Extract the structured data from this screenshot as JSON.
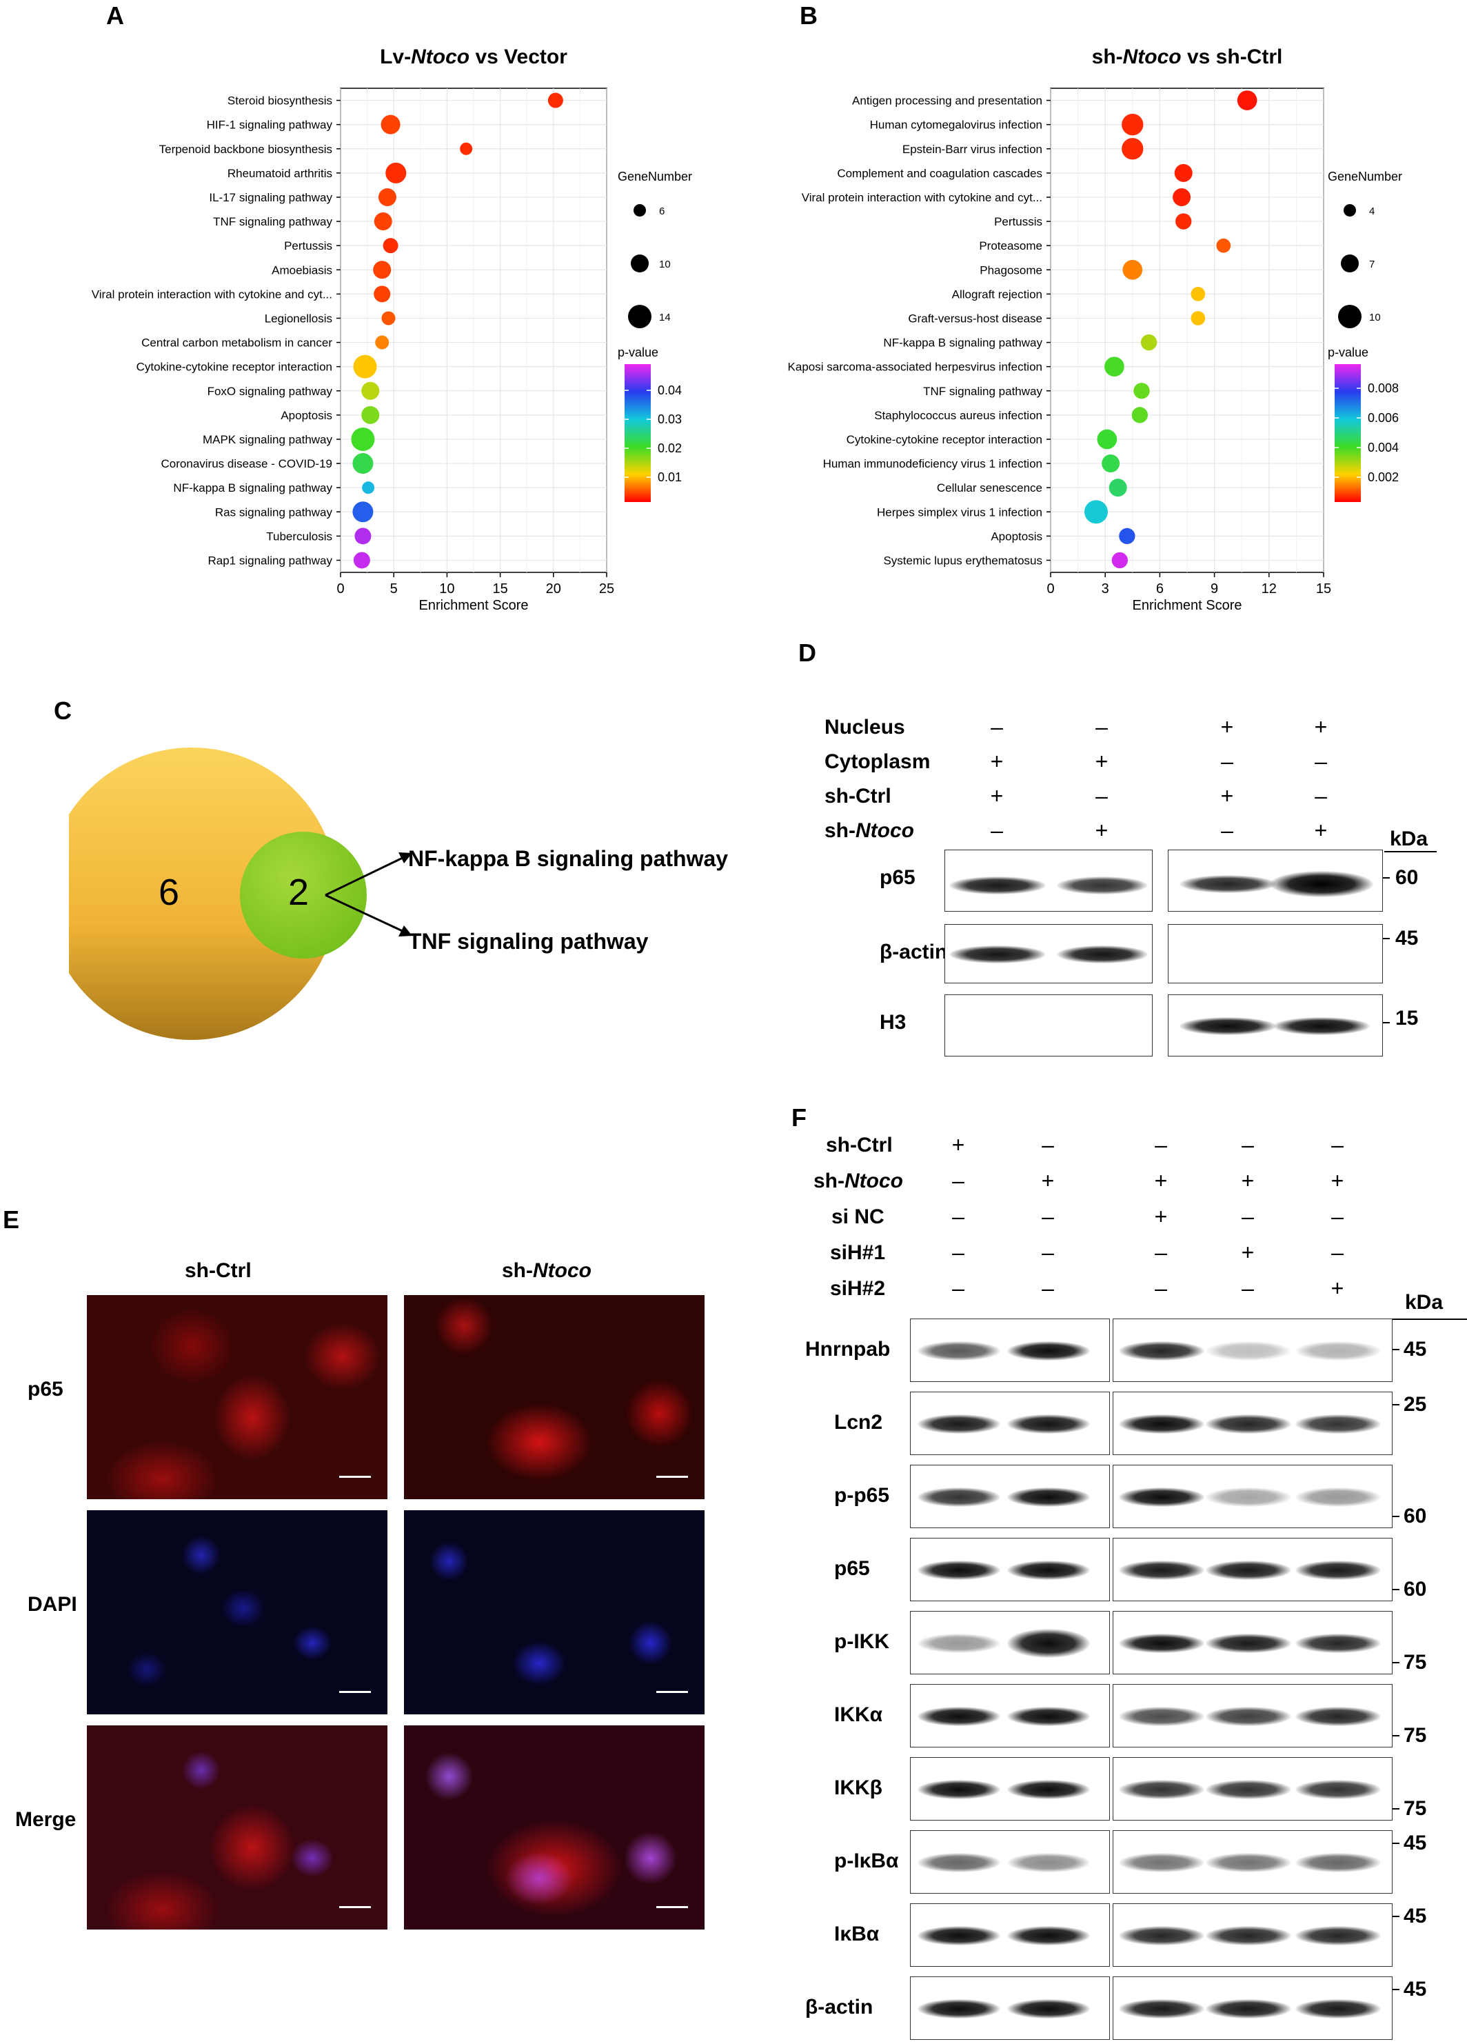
{
  "panels": {
    "A": "A",
    "B": "B",
    "C": "C",
    "D": "D",
    "E": "E",
    "F": "F"
  },
  "chart_data": [
    {
      "type": "scatter",
      "panel": "A",
      "title": "Lv-Ntoco vs Vector",
      "title_parts": [
        "Lv-",
        "Ntoco",
        " vs Vector"
      ],
      "xlabel": "Enrichment Score",
      "xlim": [
        0,
        25
      ],
      "xticks": [
        0,
        5,
        10,
        15,
        20,
        25
      ],
      "size_legend_title": "GeneNumber",
      "size_legend": [
        6,
        10,
        14
      ],
      "color_legend_title": "p-value",
      "color_ticks": [
        "0.04",
        "0.03",
        "0.02",
        "0.01"
      ],
      "grid": true,
      "categories": [
        "Steroid biosynthesis",
        "HIF-1 signaling pathway",
        "Terpenoid backbone biosynthesis",
        "Rheumatoid arthritis",
        "IL-17 signaling pathway",
        "TNF signaling pathway",
        "Pertussis",
        "Amoebiasis",
        "Viral protein interaction with cytokine and cyt...",
        "Legionellosis",
        "Central carbon metabolism in cancer",
        "Cytokine-cytokine receptor interaction",
        "FoxO signaling pathway",
        "Apoptosis",
        "MAPK signaling pathway",
        "Coronavirus disease - COVID-19",
        "NF-kappa B signaling pathway",
        "Ras signaling pathway",
        "Tuberculosis",
        "Rap1 signaling pathway"
      ],
      "enrichment": [
        20.2,
        4.7,
        11.8,
        5.2,
        4.4,
        4.0,
        4.7,
        3.9,
        3.9,
        4.5,
        3.9,
        2.3,
        2.8,
        2.8,
        2.1,
        2.1,
        2.6,
        2.1,
        2.1,
        2.0
      ],
      "gene_number": [
        8,
        11,
        6,
        12,
        10,
        10,
        8,
        10,
        9,
        7,
        7,
        14,
        10,
        10,
        14,
        12,
        6,
        12,
        9,
        9
      ],
      "pvalue": [
        0.002,
        0.003,
        0.002,
        0.002,
        0.003,
        0.003,
        0.002,
        0.003,
        0.003,
        0.004,
        0.006,
        0.009,
        0.013,
        0.016,
        0.019,
        0.021,
        0.03,
        0.036,
        0.045,
        0.046
      ]
    },
    {
      "type": "scatter",
      "panel": "B",
      "title": "sh-Ntoco vs sh-Ctrl",
      "title_parts": [
        "sh-",
        "Ntoco",
        " vs sh-Ctrl"
      ],
      "xlabel": "Enrichment Score",
      "xlim": [
        0,
        15
      ],
      "xticks": [
        0,
        3,
        6,
        9,
        12,
        15
      ],
      "size_legend_title": "GeneNumber",
      "size_legend": [
        4,
        7,
        10
      ],
      "color_legend_title": "p-value",
      "color_ticks": [
        "0.008",
        "0.006",
        "0.004",
        "0.002"
      ],
      "grid": true,
      "categories": [
        "Antigen processing and presentation",
        "Human cytomegalovirus infection",
        "Epstein-Barr virus infection",
        "Complement and coagulation cascades",
        "Viral protein interaction with cytokine and cyt...",
        "Pertussis",
        "Proteasome",
        "Phagosome",
        "Allograft rejection",
        "Graft-versus-host disease",
        "NF-kappa B signaling pathway",
        "Kaposi sarcoma-associated herpesvirus infection",
        "TNF signaling pathway",
        "Staphylococcus aureus infection",
        "Cytokine-cytokine receptor interaction",
        "Human immunodeficiency virus 1 infection",
        "Cellular senescence",
        "Herpes simplex virus 1 infection",
        "Apoptosis",
        "Systemic lupus erythematosus"
      ],
      "enrichment": [
        10.8,
        4.5,
        4.5,
        7.3,
        7.2,
        7.3,
        9.5,
        4.5,
        8.1,
        8.1,
        5.4,
        3.5,
        5.0,
        4.9,
        3.1,
        3.3,
        3.7,
        2.5,
        4.2,
        3.8
      ],
      "gene_number": [
        8,
        9,
        9,
        7,
        7,
        6,
        5,
        8,
        5,
        5,
        6,
        8,
        6,
        6,
        8,
        7,
        7,
        10,
        6,
        6
      ],
      "pvalue": [
        0.0002,
        0.0004,
        0.0004,
        0.0003,
        0.0003,
        0.0004,
        0.0008,
        0.0012,
        0.0018,
        0.0018,
        0.0028,
        0.0038,
        0.0035,
        0.0036,
        0.004,
        0.0043,
        0.0046,
        0.0058,
        0.0075,
        0.0095
      ]
    }
  ],
  "venn": {
    "outer_count": "6",
    "inner_count": "2",
    "pathways": [
      "NF-kappa B signaling pathway",
      "TNF signaling pathway"
    ]
  },
  "blotD": {
    "conditions": [
      {
        "label": "Nucleus",
        "signs": [
          "–",
          "–",
          "+",
          "+"
        ]
      },
      {
        "label": "Cytoplasm",
        "signs": [
          "+",
          "+",
          "–",
          "–"
        ]
      },
      {
        "label": "sh-Ctrl",
        "signs": [
          "+",
          "–",
          "+",
          "–"
        ]
      },
      {
        "label_parts": [
          "sh-",
          "Ntoco"
        ],
        "signs": [
          "–",
          "+",
          "–",
          "+"
        ]
      }
    ],
    "kda_header": "kDa",
    "rows": [
      {
        "label": "p65",
        "kda": "60"
      },
      {
        "label": "β-actin",
        "kda": "45"
      },
      {
        "label": "H3",
        "kda": "15"
      }
    ]
  },
  "microscopy": {
    "columns": [
      "sh-Ctrl"
    ],
    "column2_parts": [
      "sh-",
      "Ntoco"
    ],
    "rows": [
      "p65",
      "DAPI",
      "Merge"
    ]
  },
  "blotF": {
    "conditions": [
      {
        "label": "sh-Ctrl",
        "signs": [
          "+",
          "–",
          "–",
          "–",
          "–"
        ]
      },
      {
        "label_parts": [
          "sh-",
          "Ntoco"
        ],
        "signs": [
          "–",
          "+",
          "+",
          "+",
          "+"
        ]
      },
      {
        "label": "si NC",
        "signs": [
          "–",
          "–",
          "+",
          "–",
          "–"
        ]
      },
      {
        "label": "siH#1",
        "signs": [
          "–",
          "–",
          "–",
          "+",
          "–"
        ]
      },
      {
        "label": "siH#2",
        "signs": [
          "–",
          "–",
          "–",
          "–",
          "+"
        ]
      }
    ],
    "kda_header": "kDa",
    "rows": [
      {
        "label": "Hnrnpab",
        "kda": "45"
      },
      {
        "label": "Lcn2",
        "kda": "25"
      },
      {
        "label": "p-p65",
        "kda": "60"
      },
      {
        "label": "p65",
        "kda": "60"
      },
      {
        "label": "p-IKK",
        "kda": "75"
      },
      {
        "label": "IKKα",
        "kda": "75"
      },
      {
        "label": "IKKβ",
        "kda": "75"
      },
      {
        "label": "p-IκBα",
        "kda": "45"
      },
      {
        "label": "IκBα",
        "kda": "45"
      },
      {
        "label": "β-actin",
        "kda": "45"
      }
    ]
  }
}
